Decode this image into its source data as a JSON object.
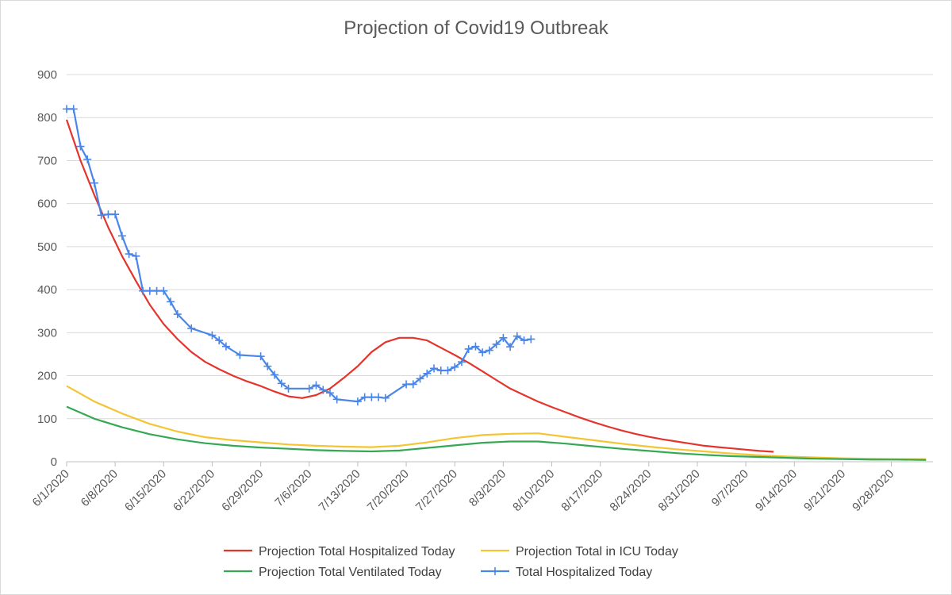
{
  "chart_data": {
    "type": "line",
    "title": "Projection of Covid19 Outbreak",
    "xlabel": "",
    "ylabel": "",
    "ylim": [
      0,
      900
    ],
    "yticks": [
      0,
      100,
      200,
      300,
      400,
      500,
      600,
      700,
      800,
      900
    ],
    "xlim": [
      "6/1/2020",
      "10/4/2020"
    ],
    "xticks": [
      "6/1/2020",
      "6/8/2020",
      "6/15/2020",
      "6/22/2020",
      "6/29/2020",
      "7/6/2020",
      "7/13/2020",
      "7/20/2020",
      "7/27/2020",
      "8/3/2020",
      "8/10/2020",
      "8/17/2020",
      "8/24/2020",
      "8/31/2020",
      "9/7/2020",
      "9/14/2020",
      "9/21/2020",
      "9/28/2020"
    ],
    "grid": true,
    "legend_position": "bottom",
    "series": [
      {
        "name": "Projection Total Hospitalized Today",
        "color": "#e3352b",
        "marker": "none",
        "points": [
          [
            "6/1/2020",
            795
          ],
          [
            "6/3/2020",
            700
          ],
          [
            "6/5/2020",
            620
          ],
          [
            "6/7/2020",
            545
          ],
          [
            "6/9/2020",
            478
          ],
          [
            "6/11/2020",
            420
          ],
          [
            "6/13/2020",
            365
          ],
          [
            "6/15/2020",
            320
          ],
          [
            "6/17/2020",
            285
          ],
          [
            "6/19/2020",
            255
          ],
          [
            "6/21/2020",
            232
          ],
          [
            "6/23/2020",
            215
          ],
          [
            "6/25/2020",
            200
          ],
          [
            "6/27/2020",
            187
          ],
          [
            "6/29/2020",
            176
          ],
          [
            "7/1/2020",
            163
          ],
          [
            "7/3/2020",
            152
          ],
          [
            "7/5/2020",
            148
          ],
          [
            "7/7/2020",
            155
          ],
          [
            "7/9/2020",
            170
          ],
          [
            "7/11/2020",
            195
          ],
          [
            "7/13/2020",
            222
          ],
          [
            "7/15/2020",
            255
          ],
          [
            "7/17/2020",
            278
          ],
          [
            "7/19/2020",
            288
          ],
          [
            "7/21/2020",
            288
          ],
          [
            "7/23/2020",
            282
          ],
          [
            "7/25/2020",
            265
          ],
          [
            "7/27/2020",
            248
          ],
          [
            "7/29/2020",
            230
          ],
          [
            "7/31/2020",
            210
          ],
          [
            "8/2/2020",
            190
          ],
          [
            "8/4/2020",
            170
          ],
          [
            "8/6/2020",
            155
          ],
          [
            "8/8/2020",
            140
          ],
          [
            "8/10/2020",
            127
          ],
          [
            "8/12/2020",
            115
          ],
          [
            "8/14/2020",
            103
          ],
          [
            "8/16/2020",
            92
          ],
          [
            "8/18/2020",
            82
          ],
          [
            "8/20/2020",
            73
          ],
          [
            "8/22/2020",
            65
          ],
          [
            "8/24/2020",
            58
          ],
          [
            "8/26/2020",
            52
          ],
          [
            "8/28/2020",
            47
          ],
          [
            "8/30/2020",
            42
          ],
          [
            "9/1/2020",
            37
          ],
          [
            "9/3/2020",
            34
          ],
          [
            "9/5/2020",
            31
          ],
          [
            "9/7/2020",
            28
          ],
          [
            "9/9/2020",
            25
          ],
          [
            "9/11/2020",
            23
          ]
        ]
      },
      {
        "name": "Projection Total in ICU Today",
        "color": "#f4c532",
        "marker": "none",
        "points": [
          [
            "6/1/2020",
            176
          ],
          [
            "6/5/2020",
            140
          ],
          [
            "6/9/2020",
            112
          ],
          [
            "6/13/2020",
            88
          ],
          [
            "6/17/2020",
            70
          ],
          [
            "6/21/2020",
            57
          ],
          [
            "6/25/2020",
            50
          ],
          [
            "6/29/2020",
            45
          ],
          [
            "7/3/2020",
            40
          ],
          [
            "7/7/2020",
            37
          ],
          [
            "7/11/2020",
            35
          ],
          [
            "7/15/2020",
            34
          ],
          [
            "7/19/2020",
            37
          ],
          [
            "7/23/2020",
            45
          ],
          [
            "7/27/2020",
            55
          ],
          [
            "7/31/2020",
            62
          ],
          [
            "8/4/2020",
            65
          ],
          [
            "8/8/2020",
            66
          ],
          [
            "8/12/2020",
            58
          ],
          [
            "8/16/2020",
            50
          ],
          [
            "8/20/2020",
            42
          ],
          [
            "8/24/2020",
            35
          ],
          [
            "8/28/2020",
            29
          ],
          [
            "9/1/2020",
            24
          ],
          [
            "9/5/2020",
            19
          ],
          [
            "9/9/2020",
            15
          ],
          [
            "9/13/2020",
            12
          ],
          [
            "9/17/2020",
            10
          ],
          [
            "9/21/2020",
            8
          ],
          [
            "9/25/2020",
            7
          ],
          [
            "9/29/2020",
            6
          ],
          [
            "10/3/2020",
            6
          ]
        ]
      },
      {
        "name": "Projection Total Ventilated Today",
        "color": "#34a853",
        "marker": "none",
        "points": [
          [
            "6/1/2020",
            128
          ],
          [
            "6/5/2020",
            100
          ],
          [
            "6/9/2020",
            80
          ],
          [
            "6/13/2020",
            64
          ],
          [
            "6/17/2020",
            52
          ],
          [
            "6/21/2020",
            43
          ],
          [
            "6/25/2020",
            37
          ],
          [
            "6/29/2020",
            33
          ],
          [
            "7/3/2020",
            30
          ],
          [
            "7/7/2020",
            27
          ],
          [
            "7/11/2020",
            25
          ],
          [
            "7/15/2020",
            24
          ],
          [
            "7/19/2020",
            26
          ],
          [
            "7/23/2020",
            32
          ],
          [
            "7/27/2020",
            38
          ],
          [
            "7/31/2020",
            44
          ],
          [
            "8/4/2020",
            47
          ],
          [
            "8/8/2020",
            47
          ],
          [
            "8/12/2020",
            42
          ],
          [
            "8/16/2020",
            36
          ],
          [
            "8/20/2020",
            30
          ],
          [
            "8/24/2020",
            25
          ],
          [
            "8/28/2020",
            20
          ],
          [
            "9/1/2020",
            16
          ],
          [
            "9/5/2020",
            13
          ],
          [
            "9/9/2020",
            11
          ],
          [
            "9/13/2020",
            9
          ],
          [
            "9/17/2020",
            7
          ],
          [
            "9/21/2020",
            6
          ],
          [
            "9/25/2020",
            5
          ],
          [
            "9/29/2020",
            5
          ],
          [
            "10/3/2020",
            4
          ]
        ]
      },
      {
        "name": "Total Hospitalized Today",
        "color": "#4a86e8",
        "marker": "plus",
        "points": [
          [
            "6/1/2020",
            820
          ],
          [
            "6/2/2020",
            820
          ],
          [
            "6/3/2020",
            733
          ],
          [
            "6/4/2020",
            703
          ],
          [
            "6/5/2020",
            648
          ],
          [
            "6/6/2020",
            573
          ],
          [
            "6/7/2020",
            575
          ],
          [
            "6/8/2020",
            575
          ],
          [
            "6/9/2020",
            525
          ],
          [
            "6/10/2020",
            483
          ],
          [
            "6/11/2020",
            478
          ],
          [
            "6/12/2020",
            397
          ],
          [
            "6/13/2020",
            397
          ],
          [
            "6/14/2020",
            397
          ],
          [
            "6/15/2020",
            397
          ],
          [
            "6/16/2020",
            372
          ],
          [
            "6/17/2020",
            343
          ],
          [
            "6/19/2020",
            310
          ],
          [
            "6/22/2020",
            294
          ],
          [
            "6/23/2020",
            282
          ],
          [
            "6/24/2020",
            268
          ],
          [
            "6/26/2020",
            248
          ],
          [
            "6/29/2020",
            245
          ],
          [
            "6/30/2020",
            222
          ],
          [
            "7/1/2020",
            202
          ],
          [
            "7/2/2020",
            182
          ],
          [
            "7/3/2020",
            170
          ],
          [
            "7/6/2020",
            170
          ],
          [
            "7/7/2020",
            178
          ],
          [
            "7/8/2020",
            167
          ],
          [
            "7/9/2020",
            160
          ],
          [
            "7/10/2020",
            145
          ],
          [
            "7/13/2020",
            140
          ],
          [
            "7/14/2020",
            150
          ],
          [
            "7/15/2020",
            150
          ],
          [
            "7/16/2020",
            150
          ],
          [
            "7/17/2020",
            148
          ],
          [
            "7/20/2020",
            180
          ],
          [
            "7/21/2020",
            180
          ],
          [
            "7/22/2020",
            193
          ],
          [
            "7/23/2020",
            205
          ],
          [
            "7/24/2020",
            217
          ],
          [
            "7/25/2020",
            212
          ],
          [
            "7/26/2020",
            212
          ],
          [
            "7/27/2020",
            220
          ],
          [
            "7/28/2020",
            232
          ],
          [
            "7/29/2020",
            262
          ],
          [
            "7/30/2020",
            268
          ],
          [
            "7/31/2020",
            254
          ],
          [
            "8/1/2020",
            259
          ],
          [
            "8/2/2020",
            273
          ],
          [
            "8/3/2020",
            288
          ],
          [
            "8/4/2020",
            267
          ],
          [
            "8/5/2020",
            292
          ],
          [
            "8/6/2020",
            282
          ],
          [
            "8/7/2020",
            285
          ]
        ]
      }
    ]
  }
}
